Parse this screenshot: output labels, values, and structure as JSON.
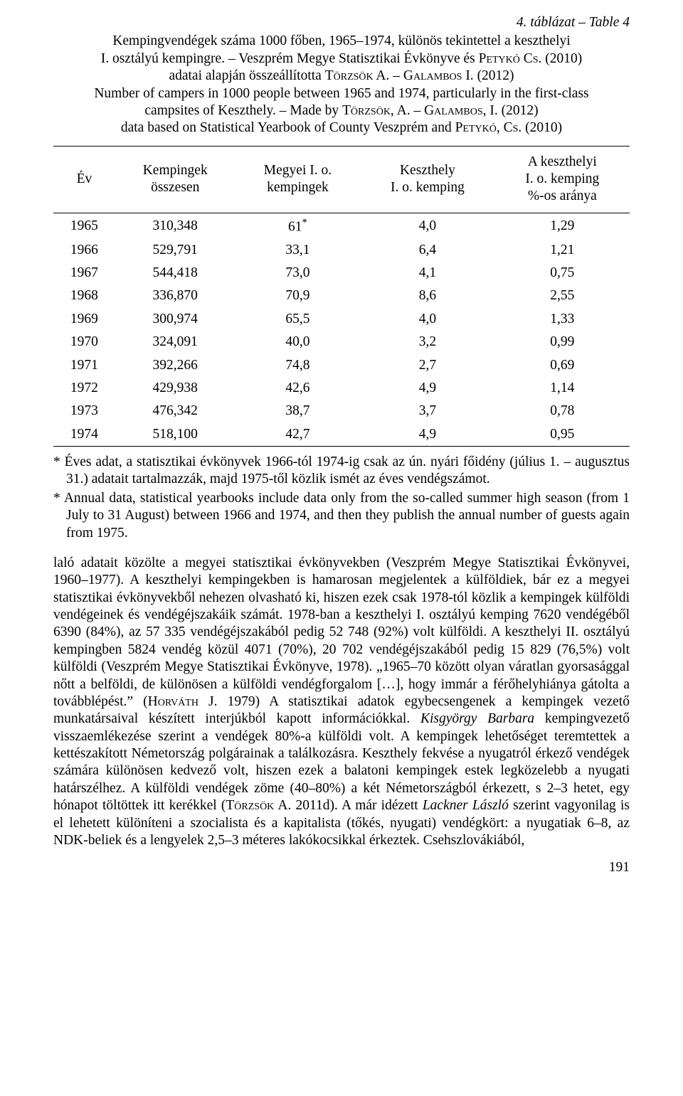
{
  "table_label": "4. táblázat – Table 4",
  "caption": {
    "hu_line1": "Kempingvendégek száma 1000 főben, 1965–1974, különös tekintettel a keszthelyi",
    "hu_line2": "I. osztályú kempingre. – Veszprém Megye Statisztikai Évkönyve és ",
    "hu_author1": "Petykó Cs.",
    "hu_line3": " (2010)",
    "hu_line4": "adatai alapján összeállította ",
    "hu_author2": "Törzsök A.",
    "hu_sep": " – ",
    "hu_author3": "Galambos I.",
    "hu_line5": " (2012)",
    "en_line1": "Number of campers in 1000 people between 1965 and 1974, particularly in the first-class",
    "en_line2": "campsites of Keszthely. – Made by ",
    "en_author1": "Törzsök, A.",
    "en_sep": " – ",
    "en_author2": "Galambos, I.",
    "en_line3": " (2012)",
    "en_line4": "data based on Statistical Yearbook of County Veszprém and ",
    "en_author3": "Petykó, Cs.",
    "en_line5": " (2010)"
  },
  "columns": {
    "c1": "Év",
    "c2a": "Kempingek",
    "c2b": "összesen",
    "c3a": "Megyei I. o.",
    "c3b": "kempingek",
    "c4a": "Keszthely",
    "c4b": "I. o. kemping",
    "c5a": "A keszthelyi",
    "c5b": "I. o. kemping",
    "c5c": "%-os aránya"
  },
  "rows": [
    {
      "y": "1965",
      "a": "310,348",
      "b": "61*",
      "c": "4,0",
      "d": "1,29",
      "star": true
    },
    {
      "y": "1966",
      "a": "529,791",
      "b": "33,1",
      "c": "6,4",
      "d": "1,21"
    },
    {
      "y": "1967",
      "a": "544,418",
      "b": "73,0",
      "c": "4,1",
      "d": "0,75"
    },
    {
      "y": "1968",
      "a": "336,870",
      "b": "70,9",
      "c": "8,6",
      "d": "2,55"
    },
    {
      "y": "1969",
      "a": "300,974",
      "b": "65,5",
      "c": "4,0",
      "d": "1,33"
    },
    {
      "y": "1970",
      "a": "324,091",
      "b": "40,0",
      "c": "3,2",
      "d": "0,99"
    },
    {
      "y": "1971",
      "a": "392,266",
      "b": "74,8",
      "c": "2,7",
      "d": "0,69"
    },
    {
      "y": "1972",
      "a": "429,938",
      "b": "42,6",
      "c": "4,9",
      "d": "1,14"
    },
    {
      "y": "1973",
      "a": "476,342",
      "b": "38,7",
      "c": "3,7",
      "d": "0,78"
    },
    {
      "y": "1974",
      "a": "518,100",
      "b": "42,7",
      "c": "4,9",
      "d": "0,95"
    }
  ],
  "footnotes": {
    "hu": "*  Éves adat, a statisztikai évkönyvek 1966-tól 1974-ig csak az ún. nyári főidény (július 1. – augusztus 31.) adatait tartalmazzák, majd 1975-től közlik ismét az éves vendégszámot.",
    "en": "*  Annual data, statistical yearbooks include data only from the so-called summer high season (from 1 July to 31 August) between 1966 and 1974, and then they publish the annual number of guests again from 1975."
  },
  "body": {
    "p1a": "laló adatait közölte a megyei statisztikai évkönyvekben (Veszprém Megye Statisztikai Évkönyvei, 1960–1977). A keszthelyi kempingekben is hamarosan megjelentek a külföldiek, bár ez a megyei statisztikai évkönyvekből nehezen olvasható ki, hiszen ezek csak 1978-tól közlik a kempingek külföldi vendégeinek és vendégéjszakáik számát. 1978-ban a keszthelyi I. osztályú kemping 7620 vendégéből 6390 (84%), az 57 335 vendégéjszakából pedig 52 748 (92%) volt külföldi. A keszthelyi II. osztályú kempingben 5824 vendég közül 4071 (70%), 20 702 vendégéjszakából pedig 15 829 (76,5%) volt külföldi (Veszprém Megye Statisztikai Évkönyve, 1978). „1965–70 között olyan váratlan gyorsasággal nőtt a belföldi, de különösen a külföldi vendégforgalom […], hogy immár a férőhelyhiánya gátolta a továbblépést.” (",
    "p1_author1": "Horváth J.",
    "p1b": " 1979) A statisztikai adatok egybecsengenek a kempingek vezető munkatársaival készített interjúkból kapott információkkal. ",
    "p1_italic": "Kisgyörgy Barbara",
    "p1c": " kempingvezető visszaemlékezése szerint a vendégek 80%-a külföldi volt. A kempingek lehetőséget teremtettek a kettészakított Németország polgárainak a találkozásra. Keszthely fekvése a nyugatról érkező vendégek számára különösen kedvező volt, hiszen ezek a balatoni kempingek estek legközelebb a nyugati határszélhez. A külföldi vendégek zöme (40–80%) a két Németországból érkezett, s 2–3 hetet, egy hónapot töltöttek itt kerékkel (",
    "p1_author2": "Törzsök A.",
    "p1d": " 2011d). A már idézett ",
    "p1_italic2": "Lackner László",
    "p1e": " szerint vagyonilag is el lehetett különíteni a szocialista és a kapitalista (tőkés, nyugati) vendégkört: a nyugatiak 6–8, az NDK-beliek és a lengyelek 2,5–3 méteres lakókocsikkal érkeztek. Csehszlovákiából,"
  },
  "page_number": "191"
}
